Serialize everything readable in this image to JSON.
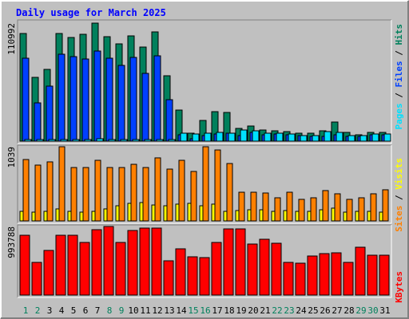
{
  "chart_data": {
    "type": "bar",
    "title": "Daily usage for March 2025",
    "categories": [
      1,
      2,
      3,
      4,
      5,
      6,
      7,
      8,
      9,
      10,
      11,
      12,
      13,
      14,
      15,
      16,
      17,
      18,
      19,
      20,
      21,
      22,
      23,
      24,
      25,
      26,
      27,
      28,
      29,
      30,
      31
    ],
    "category_colors": [
      "#00805c",
      "#00805c",
      "#000000",
      "#000000",
      "#000000",
      "#000000",
      "#000000",
      "#00805c",
      "#00805c",
      "#000000",
      "#000000",
      "#000000",
      "#000000",
      "#000000",
      "#00805c",
      "#00805c",
      "#000000",
      "#000000",
      "#000000",
      "#000000",
      "#000000",
      "#00805c",
      "#00805c",
      "#000000",
      "#000000",
      "#000000",
      "#000000",
      "#000000",
      "#00805c",
      "#00805c",
      "#000000"
    ],
    "legend_separator": " / ",
    "panels": [
      {
        "ylim": [
          0,
          110992
        ],
        "yticks": [
          110992
        ],
        "series": [
          {
            "name": "Hits",
            "color": "#00805c",
            "values": [
              101250,
              60000,
              67500,
              101250,
              97500,
              100500,
              110992,
              98250,
              91500,
              99000,
              88500,
              102750,
              61500,
              29250,
              7500,
              19500,
              27750,
              27000,
              12000,
              14250,
              10500,
              9750,
              9000,
              7500,
              7500,
              9750,
              18000,
              8250,
              6000,
              8250,
              8250
            ]
          },
          {
            "name": "Files",
            "color": "#0040ff",
            "values": [
              78000,
              36000,
              51750,
              81750,
              79500,
              77250,
              84750,
              78000,
              71250,
              78750,
              63750,
              80250,
              39000,
              6000,
              2250,
              5250,
              6750,
              7500,
              5250,
              8250,
              6000,
              6750,
              6000,
              5250,
              4500,
              4500,
              6000,
              4500,
              4500,
              6000,
              6000
            ]
          },
          {
            "name": "Pages",
            "color": "#00e0ff",
            "values": [
              1500,
              1500,
              1500,
              1500,
              1500,
              1500,
              2250,
              1500,
              1500,
              1500,
              1500,
              1500,
              1500,
              7500,
              6750,
              7500,
              8250,
              7500,
              10500,
              9750,
              7500,
              7500,
              6750,
              5250,
              5250,
              9000,
              8250,
              5250,
              5250,
              6750,
              6750
            ]
          }
        ]
      },
      {
        "ylim": [
          0,
          1039
        ],
        "yticks": [
          1039
        ],
        "series": [
          {
            "name": "Visits",
            "color": "#ffff00",
            "values": [
              134,
              123,
              134,
              168,
              134,
              123,
              134,
              168,
              212,
              246,
              257,
              223,
              212,
              235,
              246,
              212,
              235,
              134,
              145,
              156,
              156,
              134,
              145,
              134,
              134,
              156,
              179,
              123,
              134,
              134,
              123
            ]
          },
          {
            "name": "Sites",
            "color": "#ff8000",
            "values": [
              860,
              782,
              827,
              1039,
              748,
              748,
              849,
              748,
              748,
              793,
              748,
              883,
              726,
              849,
              693,
              1039,
              994,
              804,
              402,
              402,
              391,
              324,
              402,
              302,
              324,
              425,
              380,
              302,
              324,
              380,
              436
            ]
          }
        ]
      },
      {
        "ylim": [
          0,
          993788
        ],
        "yticks": [
          993788
        ],
        "series": [
          {
            "name": "KBytes",
            "color": "#ff0000",
            "values": [
              866700,
              473800,
              647100,
              866700,
              866700,
              762700,
              947600,
              993788,
              762700,
              936000,
              970700,
              970700,
              496900,
              670200,
              554700,
              543100,
              762700,
              959100,
              959100,
              739600,
              808900,
              751100,
              473800,
              462200,
              566200,
              600900,
              612400,
              473800,
              693400,
              577800,
              577800
            ]
          }
        ]
      }
    ]
  }
}
